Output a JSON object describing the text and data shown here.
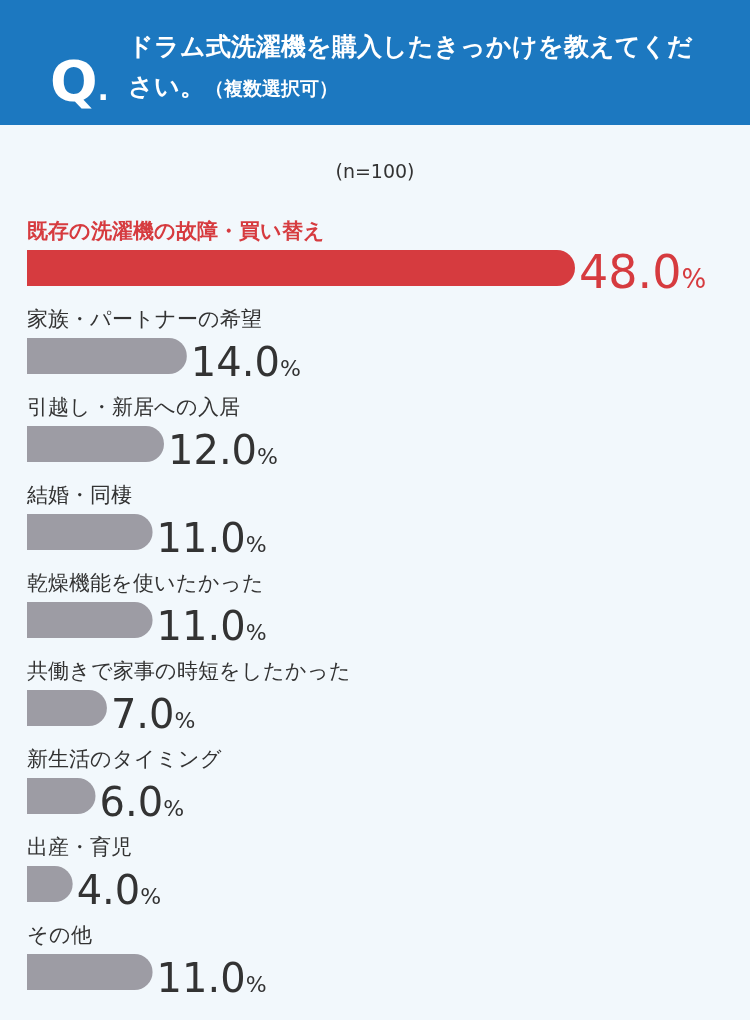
{
  "chart_data": {
    "type": "bar",
    "orientation": "horizontal",
    "title": "Q.ドラム式洗濯機を購入したきっかけを教えてください。（複数選択可）",
    "subtitle": "(n=100)",
    "categories": [
      "既存の洗濯機の故障・買い替え",
      "家族・パートナーの希望",
      "引越し・新居への入居",
      "結婚・同棲",
      "乾燥機能を使いたかった",
      "共働きで家事の時短をしたかった",
      "新生活のタイミング",
      "出産・育児",
      "その他"
    ],
    "values": [
      48.0,
      14.0,
      12.0,
      11.0,
      11.0,
      7.0,
      6.0,
      4.0,
      11.0
    ],
    "colors": [
      "#d63b3f",
      "#9d9ca4",
      "#9d9ca4",
      "#9d9ca4",
      "#9d9ca4",
      "#9d9ca4",
      "#9d9ca4",
      "#9d9ca4",
      "#9d9ca4"
    ],
    "value_labels": [
      "48.0%",
      "14.0%",
      "12.0%",
      "11.0%",
      "11.0%",
      "7.0%",
      "6.0%",
      "4.0%",
      "11.0%"
    ]
  }
}
